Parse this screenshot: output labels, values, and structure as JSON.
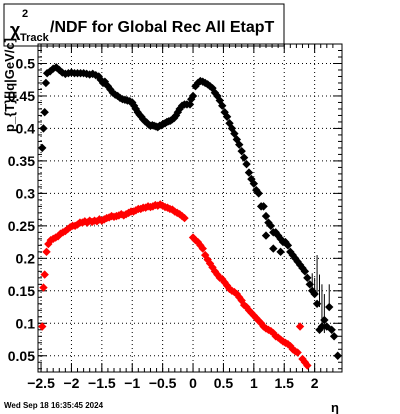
{
  "timestamp": "Wed Sep 18 16:35:45 2024",
  "chart_data": {
    "type": "scatter",
    "title": {
      "symbol": "χ",
      "superscript": "2",
      "subscript": "Track",
      "text": "/NDF for Global Rec All EtapT"
    },
    "xlabel": "η",
    "ylabel": "p_{T}[|q|GeV/c]",
    "xlim": [
      -2.55,
      2.45
    ],
    "ylim": [
      0.025,
      0.53
    ],
    "xticks": [
      -2.5,
      -2,
      -1.5,
      -1,
      -0.5,
      0,
      0.5,
      1,
      1.5,
      2
    ],
    "xtick_labels": [
      "−2.5",
      "−2",
      "−1.5",
      "−1",
      "−0.5",
      "0",
      "0.5",
      "1",
      "1.5",
      "2"
    ],
    "yticks": [
      0.05,
      0.1,
      0.15,
      0.2,
      0.25,
      0.3,
      0.35,
      0.4,
      0.45,
      0.5
    ],
    "ytick_labels": [
      "0.05",
      "0.1",
      "0.15",
      "0.2",
      "0.25",
      "0.3",
      "0.35",
      "0.4",
      "0.45",
      "0.5"
    ],
    "grid": true,
    "colors": {
      "frame": "#000000",
      "black_series": "#000000",
      "red_series": "#ff0000"
    },
    "series": [
      {
        "color": "#000000",
        "marker": "diamond",
        "points": [
          [
            -2.48,
            0.37
          ],
          [
            -2.46,
            0.4
          ],
          [
            -2.44,
            0.425
          ],
          [
            -2.42,
            0.47
          ],
          [
            -2.4,
            0.485
          ],
          [
            -2.35,
            0.488
          ],
          [
            -2.3,
            0.492
          ],
          [
            -2.25,
            0.494
          ],
          [
            -2.2,
            0.49
          ],
          [
            -2.15,
            0.486
          ],
          [
            -2.1,
            0.484
          ],
          [
            -2.05,
            0.485
          ],
          [
            -2.0,
            0.486
          ],
          [
            -1.95,
            0.485
          ],
          [
            -1.9,
            0.485
          ],
          [
            -1.85,
            0.485
          ],
          [
            -1.8,
            0.485
          ],
          [
            -1.75,
            0.484
          ],
          [
            -1.7,
            0.483
          ],
          [
            -1.65,
            0.484
          ],
          [
            -1.6,
            0.482
          ],
          [
            -1.55,
            0.48
          ],
          [
            -1.52,
            0.475
          ],
          [
            -1.48,
            0.47
          ],
          [
            -1.45,
            0.472
          ],
          [
            -1.4,
            0.465
          ],
          [
            -1.36,
            0.46
          ],
          [
            -1.32,
            0.455
          ],
          [
            -1.28,
            0.452
          ],
          [
            -1.24,
            0.45
          ],
          [
            -1.2,
            0.447
          ],
          [
            -1.16,
            0.445
          ],
          [
            -1.12,
            0.444
          ],
          [
            -1.08,
            0.443
          ],
          [
            -1.04,
            0.442
          ],
          [
            -1.0,
            0.44
          ],
          [
            -0.97,
            0.435
          ],
          [
            -0.94,
            0.43
          ],
          [
            -0.91,
            0.425
          ],
          [
            -0.88,
            0.421
          ],
          [
            -0.85,
            0.418
          ],
          [
            -0.82,
            0.414
          ],
          [
            -0.79,
            0.411
          ],
          [
            -0.76,
            0.409
          ],
          [
            -0.73,
            0.406
          ],
          [
            -0.7,
            0.404
          ],
          [
            -0.67,
            0.405
          ],
          [
            -0.64,
            0.404
          ],
          [
            -0.61,
            0.403
          ],
          [
            -0.58,
            0.402
          ],
          [
            -0.55,
            0.404
          ],
          [
            -0.52,
            0.405
          ],
          [
            -0.49,
            0.407
          ],
          [
            -0.46,
            0.408
          ],
          [
            -0.43,
            0.41
          ],
          [
            -0.4,
            0.411
          ],
          [
            -0.37,
            0.412
          ],
          [
            -0.34,
            0.414
          ],
          [
            -0.31,
            0.416
          ],
          [
            -0.28,
            0.42
          ],
          [
            -0.25,
            0.425
          ],
          [
            -0.22,
            0.43
          ],
          [
            -0.18,
            0.435
          ],
          [
            -0.14,
            0.437
          ],
          [
            -0.1,
            0.437
          ],
          [
            -0.05,
            0.437
          ],
          [
            -0.03,
            0.445
          ],
          [
            0.0,
            0.45
          ],
          [
            0.04,
            0.465
          ],
          [
            0.08,
            0.47
          ],
          [
            0.12,
            0.473
          ],
          [
            0.16,
            0.472
          ],
          [
            0.2,
            0.47
          ],
          [
            0.24,
            0.468
          ],
          [
            0.28,
            0.465
          ],
          [
            0.32,
            0.462
          ],
          [
            0.36,
            0.455
          ],
          [
            0.4,
            0.45
          ],
          [
            0.44,
            0.443
          ],
          [
            0.48,
            0.435
          ],
          [
            0.52,
            0.425
          ],
          [
            0.56,
            0.418
          ],
          [
            0.6,
            0.408
          ],
          [
            0.64,
            0.4
          ],
          [
            0.68,
            0.392
          ],
          [
            0.72,
            0.383
          ],
          [
            0.76,
            0.375
          ],
          [
            0.8,
            0.365
          ],
          [
            0.84,
            0.355
          ],
          [
            0.88,
            0.345
          ],
          [
            0.92,
            0.332
          ],
          [
            0.96,
            0.322
          ],
          [
            1.0,
            0.315
          ],
          [
            1.04,
            0.305
          ],
          [
            1.08,
            0.3
          ],
          [
            1.12,
            0.28
          ],
          [
            1.16,
            0.28
          ],
          [
            1.2,
            0.265
          ],
          [
            1.24,
            0.255
          ],
          [
            1.28,
            0.25
          ],
          [
            1.32,
            0.24
          ],
          [
            1.36,
            0.24
          ],
          [
            1.4,
            0.235
          ],
          [
            1.44,
            0.23
          ],
          [
            1.48,
            0.225
          ],
          [
            1.52,
            0.225
          ],
          [
            1.56,
            0.22
          ],
          [
            1.6,
            0.21
          ],
          [
            1.64,
            0.205
          ],
          [
            1.68,
            0.2
          ],
          [
            1.72,
            0.195
          ],
          [
            1.76,
            0.19
          ],
          [
            1.8,
            0.185
          ],
          [
            1.84,
            0.18
          ],
          [
            1.88,
            0.17
          ],
          [
            1.92,
            0.16
          ],
          [
            1.96,
            0.15
          ],
          [
            2.0,
            0.145
          ],
          [
            2.04,
            0.13
          ],
          [
            2.08,
            0.09
          ],
          [
            2.12,
            0.095
          ],
          [
            2.16,
            0.105
          ],
          [
            2.2,
            0.095
          ],
          [
            2.24,
            0.125
          ],
          [
            2.28,
            0.09
          ],
          [
            2.32,
            0.08
          ],
          [
            2.38,
            0.05
          ],
          [
            1.2,
            0.235
          ],
          [
            1.32,
            0.215
          ],
          [
            1.44,
            0.21
          ]
        ]
      },
      {
        "color": "#ff0000",
        "marker": "diamond",
        "points": [
          [
            -2.48,
            0.095
          ],
          [
            -2.46,
            0.155
          ],
          [
            -2.44,
            0.175
          ],
          [
            -2.41,
            0.21
          ],
          [
            -2.38,
            0.222
          ],
          [
            -2.34,
            0.228
          ],
          [
            -2.3,
            0.23
          ],
          [
            -2.26,
            0.232
          ],
          [
            -2.22,
            0.234
          ],
          [
            -2.18,
            0.238
          ],
          [
            -2.14,
            0.24
          ],
          [
            -2.1,
            0.242
          ],
          [
            -2.06,
            0.245
          ],
          [
            -2.02,
            0.248
          ],
          [
            -1.98,
            0.25
          ],
          [
            -1.94,
            0.25
          ],
          [
            -1.9,
            0.252
          ],
          [
            -1.86,
            0.255
          ],
          [
            -1.82,
            0.255
          ],
          [
            -1.78,
            0.257
          ],
          [
            -1.74,
            0.255
          ],
          [
            -1.7,
            0.258
          ],
          [
            -1.66,
            0.256
          ],
          [
            -1.62,
            0.258
          ],
          [
            -1.58,
            0.257
          ],
          [
            -1.54,
            0.26
          ],
          [
            -1.5,
            0.258
          ],
          [
            -1.46,
            0.26
          ],
          [
            -1.42,
            0.262
          ],
          [
            -1.38,
            0.263
          ],
          [
            -1.34,
            0.265
          ],
          [
            -1.3,
            0.264
          ],
          [
            -1.26,
            0.265
          ],
          [
            -1.22,
            0.266
          ],
          [
            -1.18,
            0.268
          ],
          [
            -1.14,
            0.266
          ],
          [
            -1.1,
            0.268
          ],
          [
            -1.06,
            0.27
          ],
          [
            -1.02,
            0.272
          ],
          [
            -0.98,
            0.272
          ],
          [
            -0.94,
            0.274
          ],
          [
            -0.9,
            0.276
          ],
          [
            -0.86,
            0.276
          ],
          [
            -0.82,
            0.278
          ],
          [
            -0.78,
            0.278
          ],
          [
            -0.74,
            0.28
          ],
          [
            -0.7,
            0.279
          ],
          [
            -0.66,
            0.28
          ],
          [
            -0.62,
            0.282
          ],
          [
            -0.58,
            0.281
          ],
          [
            -0.54,
            0.283
          ],
          [
            -0.5,
            0.281
          ],
          [
            -0.46,
            0.279
          ],
          [
            -0.42,
            0.278
          ],
          [
            -0.38,
            0.276
          ],
          [
            -0.34,
            0.275
          ],
          [
            -0.3,
            0.272
          ],
          [
            -0.26,
            0.27
          ],
          [
            -0.22,
            0.268
          ],
          [
            -0.18,
            0.265
          ],
          [
            -0.14,
            0.262
          ],
          [
            0.0,
            0.232
          ],
          [
            0.04,
            0.228
          ],
          [
            0.08,
            0.225
          ],
          [
            0.12,
            0.22
          ],
          [
            0.16,
            0.215
          ],
          [
            0.2,
            0.205
          ],
          [
            0.24,
            0.198
          ],
          [
            0.28,
            0.192
          ],
          [
            0.32,
            0.186
          ],
          [
            0.36,
            0.18
          ],
          [
            0.4,
            0.175
          ],
          [
            0.44,
            0.17
          ],
          [
            0.48,
            0.168
          ],
          [
            0.52,
            0.163
          ],
          [
            0.56,
            0.158
          ],
          [
            0.6,
            0.153
          ],
          [
            0.64,
            0.15
          ],
          [
            0.68,
            0.148
          ],
          [
            0.72,
            0.145
          ],
          [
            0.76,
            0.14
          ],
          [
            0.8,
            0.135
          ],
          [
            0.84,
            0.128
          ],
          [
            0.88,
            0.125
          ],
          [
            0.92,
            0.12
          ],
          [
            0.96,
            0.116
          ],
          [
            1.0,
            0.112
          ],
          [
            1.04,
            0.108
          ],
          [
            1.08,
            0.104
          ],
          [
            1.12,
            0.1
          ],
          [
            1.16,
            0.095
          ],
          [
            1.2,
            0.092
          ],
          [
            1.24,
            0.09
          ],
          [
            1.28,
            0.088
          ],
          [
            1.32,
            0.085
          ],
          [
            1.36,
            0.08
          ],
          [
            1.4,
            0.078
          ],
          [
            1.44,
            0.075
          ],
          [
            1.48,
            0.072
          ],
          [
            1.52,
            0.07
          ],
          [
            1.56,
            0.068
          ],
          [
            1.6,
            0.065
          ],
          [
            1.64,
            0.06
          ],
          [
            1.68,
            0.057
          ],
          [
            1.72,
            0.055
          ],
          [
            1.76,
            0.095
          ],
          [
            1.8,
            0.045
          ],
          [
            1.84,
            0.04
          ],
          [
            1.88,
            0.035
          ]
        ]
      }
    ],
    "error_bars": [
      [
        2.04,
        0.175,
        0.03
      ],
      [
        2.08,
        0.15,
        0.025
      ],
      [
        2.12,
        0.13,
        0.03
      ],
      [
        2.16,
        0.115,
        0.03
      ],
      [
        2.24,
        0.14,
        0.02
      ],
      [
        2.0,
        0.155,
        0.015
      ],
      [
        1.96,
        0.165,
        0.012
      ]
    ]
  }
}
